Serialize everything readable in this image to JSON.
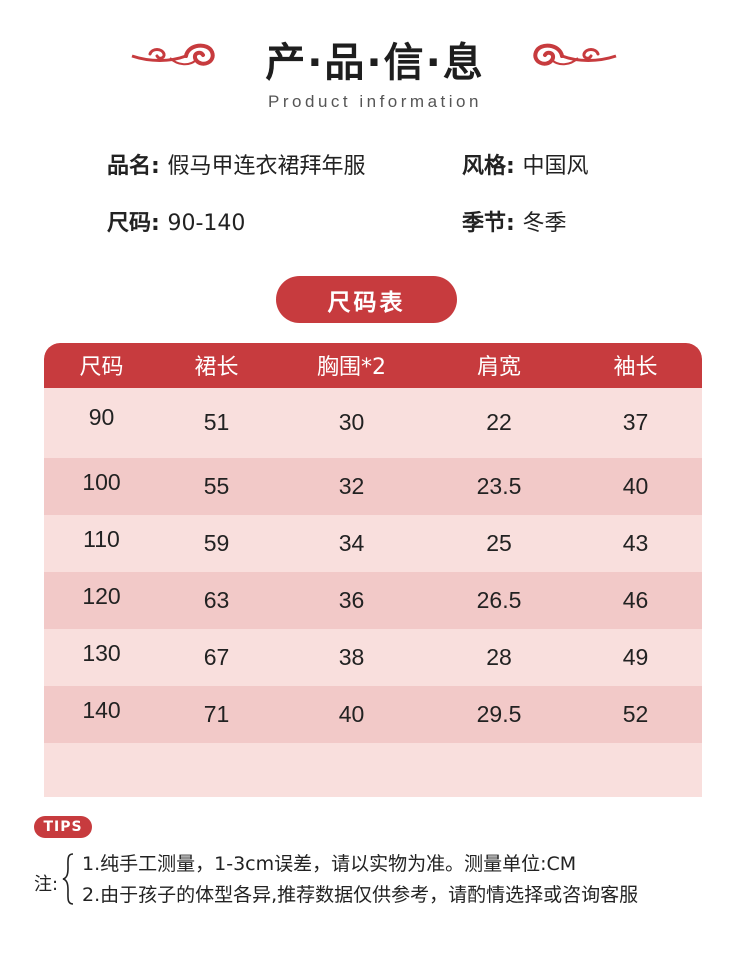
{
  "header": {
    "title": "产·品·信·息",
    "subtitle": "Product information",
    "decor_color": "#c73b3e"
  },
  "info": {
    "name_key": "品名:",
    "name_value": "假马甲连衣裙拜年服",
    "style_key": "风格:",
    "style_value": "中国风",
    "size_key": "尺码:",
    "size_value": "90-140",
    "season_key": "季节:",
    "season_value": "冬季"
  },
  "size_chart": {
    "badge": "尺码表",
    "headers": [
      "尺码",
      "裙长",
      "胸围*2",
      "肩宽",
      "袖长"
    ],
    "rows": [
      [
        "90",
        "51",
        "30",
        "22",
        "37"
      ],
      [
        "100",
        "55",
        "32",
        "23.5",
        "40"
      ],
      [
        "110",
        "59",
        "34",
        "25",
        "43"
      ],
      [
        "120",
        "63",
        "36",
        "26.5",
        "46"
      ],
      [
        "130",
        "67",
        "38",
        "28",
        "49"
      ],
      [
        "140",
        "71",
        "40",
        "29.5",
        "52"
      ]
    ],
    "colors": {
      "header": "#c73b3e",
      "row": "#f9dfdd",
      "row_alt": "#f2c9c8"
    }
  },
  "tips": {
    "badge": "TIPS",
    "label": "注:",
    "notes": [
      "1.纯手工测量，1-3cm误差，请以实物为准。测量单位:CM",
      "2.由于孩子的体型各异,推荐数据仅供参考，请酌情选择或咨询客服"
    ]
  }
}
